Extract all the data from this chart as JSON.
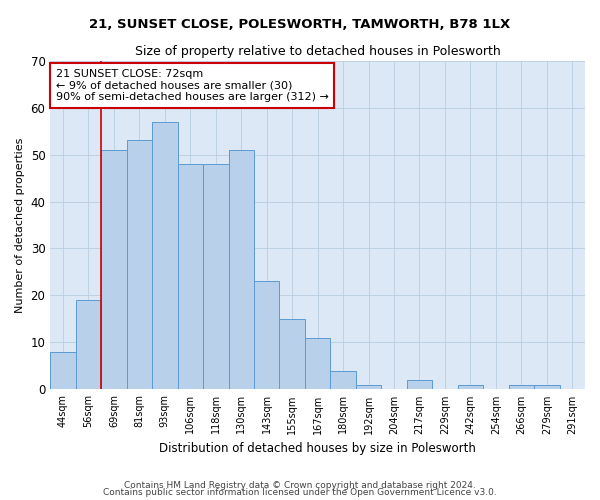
{
  "title": "21, SUNSET CLOSE, POLESWORTH, TAMWORTH, B78 1LX",
  "subtitle": "Size of property relative to detached houses in Polesworth",
  "xlabel": "Distribution of detached houses by size in Polesworth",
  "ylabel": "Number of detached properties",
  "categories": [
    "44sqm",
    "56sqm",
    "69sqm",
    "81sqm",
    "93sqm",
    "106sqm",
    "118sqm",
    "130sqm",
    "143sqm",
    "155sqm",
    "167sqm",
    "180sqm",
    "192sqm",
    "204sqm",
    "217sqm",
    "229sqm",
    "242sqm",
    "254sqm",
    "266sqm",
    "279sqm",
    "291sqm"
  ],
  "values": [
    8,
    19,
    51,
    53,
    57,
    48,
    48,
    51,
    23,
    15,
    11,
    4,
    1,
    0,
    2,
    0,
    1,
    0,
    1,
    1,
    0
  ],
  "bar_color": "#b8d0ea",
  "bar_edge_color": "#5b9bd5",
  "ylim": [
    0,
    70
  ],
  "yticks": [
    0,
    10,
    20,
    30,
    40,
    50,
    60,
    70
  ],
  "annotation_text": "21 SUNSET CLOSE: 72sqm\n← 9% of detached houses are smaller (30)\n90% of semi-detached houses are larger (312) →",
  "annotation_box_color": "#ffffff",
  "annotation_box_edge": "#cc0000",
  "vline_x_index": 1.5,
  "vline_color": "#cc0000",
  "bg_color": "#dce8f5",
  "footer1": "Contains HM Land Registry data © Crown copyright and database right 2024.",
  "footer2": "Contains public sector information licensed under the Open Government Licence v3.0."
}
